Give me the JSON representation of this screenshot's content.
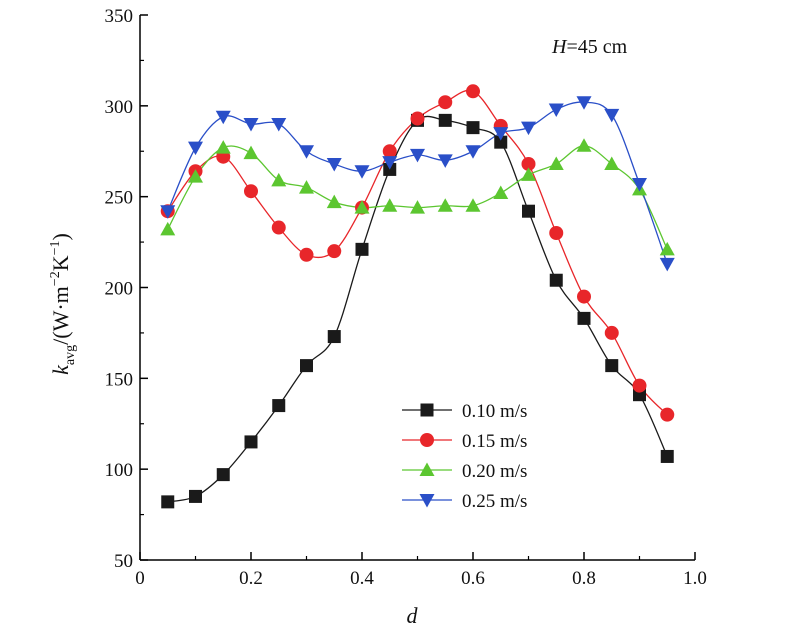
{
  "chart_data": {
    "type": "line",
    "title": "",
    "annotation": {
      "var": "H",
      "rest": "=45 cm"
    },
    "xlabel": "d",
    "ylabel": {
      "main": "k",
      "sub": "avg",
      "unit_open": "/(W·m",
      "exp1": "−2",
      "unit_mid": "K",
      "exp2": "−1",
      "unit_close": ")"
    },
    "xlim": [
      0,
      1.0
    ],
    "ylim": [
      50,
      350
    ],
    "xticks": [
      0,
      0.2,
      0.4,
      0.6,
      0.8,
      1.0
    ],
    "xtick_labels": [
      "0",
      "0.2",
      "0.4",
      "0.6",
      "0.8",
      "1.0"
    ],
    "yticks": [
      50,
      100,
      150,
      200,
      250,
      300,
      350
    ],
    "ytick_labels": [
      "50",
      "100",
      "150",
      "200",
      "250",
      "300",
      "350"
    ],
    "grid": false,
    "legend_position": "bottom-center",
    "x": [
      0.05,
      0.1,
      0.15,
      0.2,
      0.25,
      0.3,
      0.35,
      0.4,
      0.45,
      0.5,
      0.55,
      0.6,
      0.65,
      0.7,
      0.75,
      0.8,
      0.85,
      0.9,
      0.95
    ],
    "series": [
      {
        "name": "0.10 m/s",
        "color": "#1a1a1a",
        "marker": "square",
        "values": [
          82,
          85,
          97,
          115,
          135,
          157,
          173,
          221,
          265,
          292,
          292,
          288,
          280,
          242,
          204,
          183,
          157,
          141,
          107
        ]
      },
      {
        "name": "0.15 m/s",
        "color": "#e8262a",
        "marker": "circle",
        "values": [
          242,
          264,
          272,
          253,
          233,
          218,
          220,
          244,
          275,
          293,
          302,
          308,
          289,
          268,
          230,
          195,
          175,
          146,
          130
        ]
      },
      {
        "name": "0.20 m/s",
        "color": "#5cc630",
        "marker": "triangle-up",
        "values": [
          232,
          261,
          277,
          274,
          259,
          255,
          247,
          244,
          245,
          244,
          245,
          245,
          252,
          262,
          268,
          278,
          268,
          254,
          221
        ]
      },
      {
        "name": "0.25 m/s",
        "color": "#2a4fc8",
        "marker": "triangle-down",
        "values": [
          242,
          277,
          294,
          290,
          290,
          275,
          268,
          264,
          269,
          273,
          270,
          275,
          285,
          288,
          298,
          302,
          295,
          257,
          213
        ]
      }
    ]
  }
}
